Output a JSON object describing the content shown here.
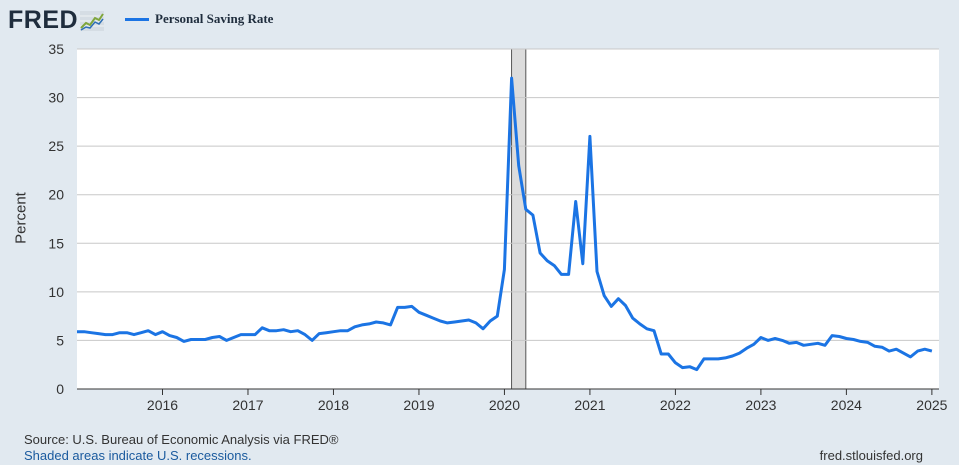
{
  "header": {
    "logo_text": "FRED",
    "legend_label": "Personal Saving Rate",
    "line_color": "#1b74e4"
  },
  "footer": {
    "source": "Source: U.S. Bureau of Economic Analysis via FRED®",
    "recession_note": "Shaded areas indicate U.S. recessions.",
    "url": "fred.stlouisfed.org"
  },
  "chart_data": {
    "type": "line",
    "title": "",
    "xlabel": "",
    "ylabel": "Percent",
    "ylim": [
      0,
      35
    ],
    "yticks": [
      0,
      5,
      10,
      15,
      20,
      25,
      30,
      35
    ],
    "xticks": [
      "2016",
      "2017",
      "2018",
      "2019",
      "2020",
      "2021",
      "2022",
      "2023",
      "2024",
      "2025"
    ],
    "x_range": [
      "2015-01",
      "2025-02"
    ],
    "grid": true,
    "recessions": [
      {
        "start": "2020-02",
        "end": "2020-04"
      }
    ],
    "series": [
      {
        "name": "Personal Saving Rate",
        "color": "#1b74e4",
        "start": "2015-01",
        "frequency": "monthly",
        "values": [
          5.9,
          5.9,
          5.8,
          5.7,
          5.6,
          5.6,
          5.8,
          5.8,
          5.6,
          5.8,
          6.0,
          5.6,
          5.9,
          5.5,
          5.3,
          4.9,
          5.1,
          5.1,
          5.1,
          5.3,
          5.4,
          5.0,
          5.3,
          5.6,
          5.6,
          5.6,
          6.3,
          6.0,
          6.0,
          6.1,
          5.9,
          6.0,
          5.6,
          5.0,
          5.7,
          5.8,
          5.9,
          6.0,
          6.0,
          6.4,
          6.6,
          6.7,
          6.9,
          6.8,
          6.6,
          8.4,
          8.4,
          8.5,
          7.9,
          7.6,
          7.3,
          7.0,
          6.8,
          6.9,
          7.0,
          7.1,
          6.8,
          6.2,
          7.0,
          7.5,
          12.3,
          32.0,
          23.0,
          18.5,
          17.9,
          14.0,
          13.2,
          12.7,
          11.8,
          11.8,
          19.3,
          12.9,
          26.0,
          12.1,
          9.6,
          8.5,
          9.3,
          8.6,
          7.3,
          6.7,
          6.2,
          6.0,
          3.6,
          3.6,
          2.7,
          2.2,
          2.3,
          2.0,
          3.1,
          3.1,
          3.1,
          3.2,
          3.4,
          3.7,
          4.2,
          4.6,
          5.3,
          5.0,
          5.2,
          5.0,
          4.7,
          4.8,
          4.5,
          4.6,
          4.7,
          4.5,
          5.5,
          5.4,
          5.2,
          5.1,
          4.9,
          4.8,
          4.4,
          4.3,
          3.9,
          4.1,
          3.7,
          3.3,
          3.9,
          4.1,
          3.9
        ]
      }
    ]
  }
}
